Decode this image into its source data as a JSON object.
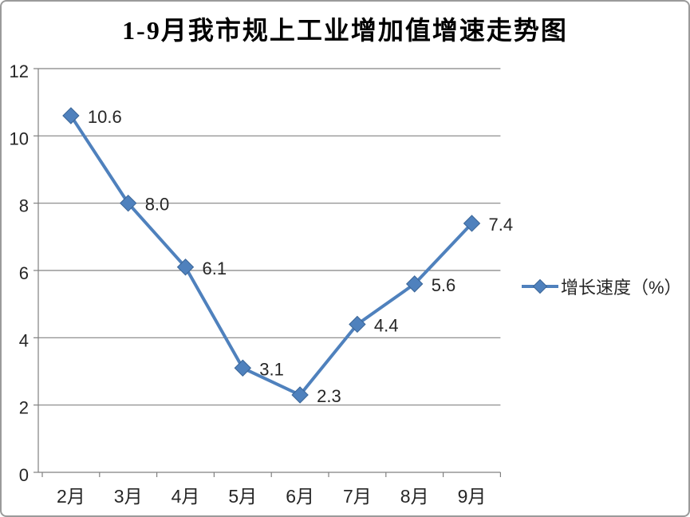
{
  "chart_data": {
    "type": "line",
    "title": "1-9月我市规上工业增加值增速走势图",
    "categories": [
      "2月",
      "3月",
      "4月",
      "5月",
      "6月",
      "7月",
      "8月",
      "9月"
    ],
    "series": [
      {
        "name": "增长速度（%）",
        "values": [
          10.6,
          8.0,
          6.1,
          3.1,
          2.3,
          4.4,
          5.6,
          7.4
        ],
        "labels": [
          "10.6",
          "8.0",
          "6.1",
          "3.1",
          "2.3",
          "4.4",
          "5.6",
          "7.4"
        ]
      }
    ],
    "ylim": [
      0,
      12
    ],
    "ytick_step": 2,
    "ytick_labels": [
      "0",
      "2",
      "4",
      "6",
      "8",
      "10",
      "12"
    ],
    "grid": true,
    "legend_position": "right",
    "colors": {
      "line": "#4F81BD",
      "marker_fill": "#4F81BD",
      "marker_stroke": "#3A6597",
      "grid": "#828282",
      "axis": "#808080",
      "text": "#262626",
      "frame_border": "#9A9A9A"
    }
  }
}
